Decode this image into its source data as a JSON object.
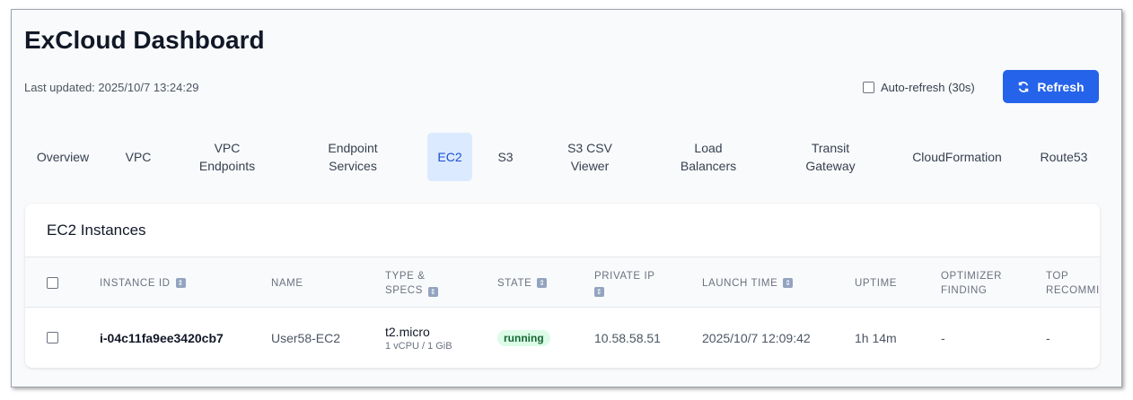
{
  "header": {
    "title": "ExCloud Dashboard",
    "last_updated": "Last updated: 2025/10/7 13:24:29",
    "auto_refresh_label": "Auto-refresh (30s)",
    "refresh_label": "Refresh"
  },
  "tabs": [
    {
      "l1": "Overview",
      "l2": ""
    },
    {
      "l1": "VPC",
      "l2": ""
    },
    {
      "l1": "VPC",
      "l2": "Endpoints"
    },
    {
      "l1": "Endpoint",
      "l2": "Services"
    },
    {
      "l1": "EC2",
      "l2": "",
      "active": true
    },
    {
      "l1": "S3",
      "l2": ""
    },
    {
      "l1": "S3 CSV",
      "l2": "Viewer"
    },
    {
      "l1": "Load",
      "l2": "Balancers"
    },
    {
      "l1": "Transit",
      "l2": "Gateway"
    },
    {
      "l1": "CloudFormation",
      "l2": ""
    },
    {
      "l1": "Route53",
      "l2": ""
    }
  ],
  "card": {
    "title": "EC2 Instances",
    "columns": [
      {
        "l1": "INSTANCE ID",
        "l2": "",
        "sortable": true
      },
      {
        "l1": "NAME",
        "l2": ""
      },
      {
        "l1": "TYPE &",
        "l2": "SPECS",
        "sortable": true
      },
      {
        "l1": "STATE",
        "l2": "",
        "sortable": true
      },
      {
        "l1": "PRIVATE IP",
        "l2": "",
        "sortable": true
      },
      {
        "l1": "LAUNCH TIME",
        "l2": "",
        "sortable": true
      },
      {
        "l1": "UPTIME",
        "l2": ""
      },
      {
        "l1": "OPTIMIZER",
        "l2": "FINDING"
      },
      {
        "l1": "TOP",
        "l2": "RECOMMI"
      }
    ],
    "rows": [
      {
        "instance_id": "i-04c11fa9ee3420cb7",
        "name": "User58-EC2",
        "type": "t2.micro",
        "specs": "1 vCPU / 1 GiB",
        "state": "running",
        "private_ip": "10.58.58.51",
        "launch_time": "2025/10/7 12:09:42",
        "uptime": "1h 14m",
        "optimizer_finding": "-",
        "top_recommendation": "-"
      }
    ]
  },
  "colors": {
    "accent": "#2563eb",
    "active_tab_bg": "#dbeafe",
    "running_bg": "#dcfce7",
    "running_text": "#166534"
  }
}
